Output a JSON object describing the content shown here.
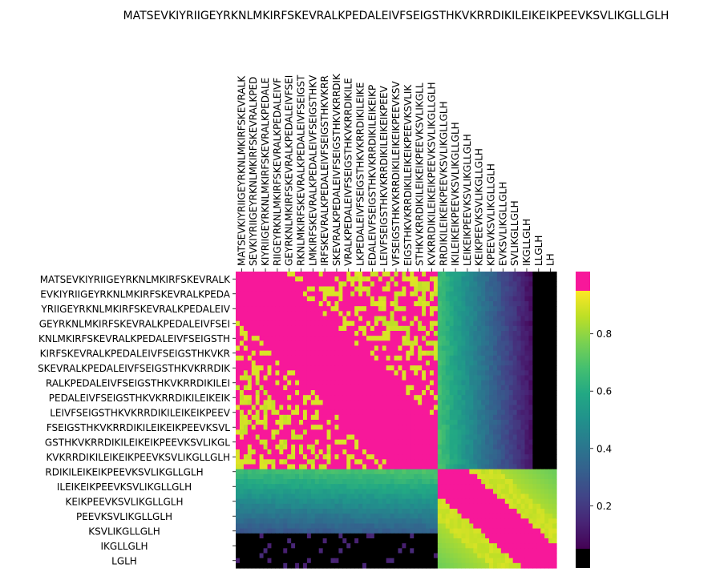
{
  "chart_data": {
    "type": "heatmap",
    "title": "MATSEVKIYRIIGEYRKNLMKIRFSKEVRALKPEDALEIVFSEIGSTHKVKRRDIKILEIKEIKPEEVKSVLIKGLLGLH",
    "xlabel": "",
    "ylabel": "",
    "x_tick_labels": [
      "MATSEVKIYRIIGEYRKNLMKIRFSKEVRALK",
      "SEVKIYRIIGEYRKNLMKIRFSKEVRALKPED",
      "KIYRIIGEYRKNLMKIRFSKEVRALKPEDALE",
      "RIIGEYRKNLMKIRFSKEVRALKPEDALEIVF",
      "GEYRKNLMKIRFSKEVRALKPEDALEIVFSEI",
      "RKNLMKIRFSKEVRALKPEDALEIVFSEIGST",
      "LMKIRFSKEVRALKPEDALEIVFSEIGSTHKV",
      "IRFSKEVRALKPEDALEIVFSEIGSTHKVKRR",
      "SKEVRALKPEDALEIVFSEIGSTHKVKRRDIK",
      "VRALKPEDALEIVFSEIGSTHKVKRRDIKILE",
      "LKPEDALEIVFSEIGSTHKVKRRDIKILEIKE",
      "EDALEIVFSEIGSTHKVKRRDIKILEIKEIKP",
      "LEIVFSEIGSTHKVKRRDIKILEIKEIKPEEV",
      "VFSEIGSTHKVKRRDIKILEIKEIKPEEVKSV",
      "EIGSTHKVKRRDIKILEIKEIKPEEVKSVLIK",
      "STHKVKRRDIKILEIKEIKPEEVKSVLIKGLL",
      "KVKRRDIKILEIKEIKPEEVKSVLIKGLLGLH",
      "RRDIKILEIKEIKPEEVKSVLIKGLLGLH",
      "IKILEIKEIKPEEVKSVLIKGLLGLH",
      "LEIKEIKPEEVKSVLIKGLLGLH",
      "KEIKPEEVKSVLIKGLLGLH",
      "KPEEVKSVLIKGLLGLH",
      "EVKSVLIKGLLGLH",
      "SVLIKGLLGLH",
      "IKGLLGLH",
      "LLGLH",
      "LH"
    ],
    "y_tick_labels": [
      "MATSEVKIYRIIGEYRKNLMKIRFSKEVRALK",
      "EVKIYRIIGEYRKNLMKIRFSKEVRALKPEDA",
      "YRIIGEYRKNLMKIRFSKEVRALKPEDALEIV",
      "GEYRKNLMKIRFSKEVRALKPEDALEIVFSEI",
      "KNLMKIRFSKEVRALKPEDALEIVFSEIGSTH",
      "KIRFSKEVRALKPEDALEIVFSEIGSTHKVKR",
      "SKEVRALKPEDALEIVFSEIGSTHKVKRRDIK",
      "RALKPEDALEIVFSEIGSTHKVKRRDIKILEI",
      "PEDALEIVFSEIGSTHKVKRRDIKILEIKEIK",
      "LEIVFSEIGSTHKVKRRDIKILEIKEIKPEEV",
      "FSEIGSTHKVKRRDIKILEIKEIKPEEVKSVL",
      "GSTHKVKRRDIKILEIKEIKPEEVKSVLIKGL",
      "KVKRRDIKILEIKEIKPEEVKSVLIKGLLGLH",
      "RDIKILEIKEIKPEEVKSVLIKGLLGLH",
      "ILEIKEIKPEEVKSVLIKGLLGLH",
      "KEIKPEEVKSVLIKGLLGLH",
      "PEEVKSVLIKGLLGLH",
      "KSVLIKGLLGLH",
      "IKGLLGLH",
      "LGLH"
    ],
    "colorbar": {
      "colormap": "viridis",
      "vmin": 0.05,
      "vmax": 0.95,
      "ticks": [
        0.2,
        0.4,
        0.6,
        0.8
      ],
      "tick_labels": [
        "0.2",
        "0.4",
        "0.6",
        "0.8"
      ],
      "under_color": "#000000",
      "over_color": "#f7189a"
    },
    "blocks": [
      {
        "rows": [
          0,
          12
        ],
        "cols": [
          0,
          16
        ],
        "level": "high",
        "value": 0.97
      },
      {
        "rows": [
          13,
          19
        ],
        "cols": [
          17,
          26
        ],
        "level": "high",
        "value": 0.97
      },
      {
        "rows": [
          0,
          12
        ],
        "cols": [
          17,
          26
        ],
        "level": "decaying",
        "value_from": 0.7,
        "value_to": 0.02
      },
      {
        "rows": [
          13,
          19
        ],
        "cols": [
          0,
          16
        ],
        "level": "decaying",
        "value_from": 0.7,
        "value_to": 0.02
      }
    ]
  }
}
